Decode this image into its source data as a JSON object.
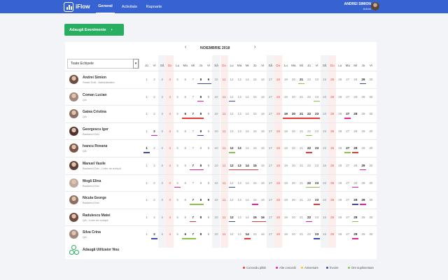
{
  "header": {
    "logo_text": "iFlow",
    "nav": [
      {
        "label": "General",
        "active": true
      },
      {
        "label": "Activitate",
        "active": false
      },
      {
        "label": "Rapoarte",
        "active": false
      }
    ],
    "user_name": "ANDREI SIMION",
    "user_role": "Admin"
  },
  "toolbar": {
    "add_event_label": "Adaugă Evenimente",
    "add_event_arrow": "›"
  },
  "calendar": {
    "month": "NOIEMBRIE 2018",
    "prev": "‹",
    "next": "›",
    "team_filter": "Toate Echipele",
    "weekday_letters": [
      "Jo",
      "Vi",
      "Sâ",
      "Du",
      "Lu",
      "Ma",
      "Mi",
      "Jo",
      "Vi",
      "Sâ",
      "Du",
      "Lu",
      "Ma",
      "Mi",
      "Jo",
      "Vi",
      "Sâ",
      "Du",
      "Lu",
      "Ma",
      "Mi",
      "Jo",
      "Vi",
      "Sâ",
      "Du",
      "Lu",
      "Ma",
      "Mi",
      "Jo",
      "Vi"
    ],
    "days_in_month": 30,
    "first_weekday_index": 0,
    "people": [
      {
        "name": "Andrei Simion",
        "role": "Smart Soft - Administrator",
        "bold": [
          8,
          9,
          21,
          29
        ],
        "events": [
          {
            "day": 8,
            "span": 2,
            "type": "invoire"
          },
          {
            "day": 21,
            "span": 1,
            "type": "ore"
          },
          {
            "day": 29,
            "span": 1,
            "type": "invoire"
          }
        ]
      },
      {
        "name": "Coman Lucian",
        "role": "QA",
        "bold": [
          8
        ],
        "events": [
          {
            "day": 8,
            "span": 1,
            "type": "alte"
          },
          {
            "day": 12,
            "span": 1,
            "type": "invoire"
          },
          {
            "day": 23,
            "span": 1,
            "type": "ore"
          }
        ]
      },
      {
        "name": "Gatea Cristina",
        "role": "QA",
        "bold": [
          6,
          7,
          8,
          19,
          20,
          21,
          22,
          23,
          27,
          28
        ],
        "events": [
          {
            "day": 6,
            "span": 3,
            "type": "concediu"
          },
          {
            "day": 19,
            "span": 5,
            "type": "concediu"
          },
          {
            "day": 27,
            "span": 1,
            "type": "alte"
          }
        ]
      },
      {
        "name": "Georgescu Igor",
        "role": "Backend Dev",
        "bold": [
          2,
          8
        ],
        "events": [
          {
            "day": 2,
            "span": 1,
            "type": "alte"
          },
          {
            "day": 8,
            "span": 1,
            "type": "invoire"
          },
          {
            "day": 22,
            "span": 1,
            "type": "ore"
          }
        ]
      },
      {
        "name": "Ivancu Roxana",
        "role": "QA",
        "bold": [
          1,
          12,
          13,
          22,
          23,
          27,
          28
        ],
        "events": [
          {
            "day": 1,
            "span": 1,
            "type": "invoire"
          },
          {
            "day": 12,
            "span": 1,
            "type": "ore"
          },
          {
            "day": 22,
            "span": 1,
            "type": "concediu"
          },
          {
            "day": 27,
            "span": 1,
            "type": "ore"
          },
          {
            "day": 28,
            "span": 1,
            "type": "concediu"
          }
        ]
      },
      {
        "name": "Manuel Vasile",
        "role": "Backend Dev - Lider de echipă",
        "bold": [
          7,
          8,
          12,
          13,
          14,
          15,
          29
        ],
        "events": [
          {
            "day": 7,
            "span": 2,
            "type": "alte"
          },
          {
            "day": 12,
            "span": 4,
            "type": "concediu"
          },
          {
            "day": 29,
            "span": 1,
            "type": "alte"
          }
        ]
      },
      {
        "name": "Mogă Elina",
        "role": "Backend Dev",
        "bold": [
          22,
          23
        ],
        "events": [
          {
            "day": 5,
            "span": 1,
            "type": "alte"
          },
          {
            "day": 12,
            "span": 1,
            "type": "invoire"
          },
          {
            "day": 22,
            "span": 2,
            "type": "ore"
          },
          {
            "day": 28,
            "span": 1,
            "type": "alte"
          }
        ]
      },
      {
        "name": "Nicula George",
        "role": "Backend Dev",
        "bold": [
          7,
          8,
          9,
          23,
          28,
          29
        ],
        "events": [
          {
            "day": 7,
            "span": 2,
            "type": "ore"
          },
          {
            "day": 15,
            "span": 1,
            "type": "alte"
          },
          {
            "day": 23,
            "span": 1,
            "type": "concediu"
          },
          {
            "day": 28,
            "span": 1,
            "type": "invoire"
          },
          {
            "day": 29,
            "span": 1,
            "type": "alte"
          }
        ]
      },
      {
        "name": "Radulescu Matei",
        "role": "QA - Lider de echipă",
        "bold": [
          7,
          8,
          12,
          15,
          16,
          22,
          28
        ],
        "events": [
          {
            "day": 7,
            "span": 1,
            "type": "concediu"
          },
          {
            "day": 12,
            "span": 1,
            "type": "invoire"
          },
          {
            "day": 15,
            "span": 2,
            "type": "concediu"
          },
          {
            "day": 22,
            "span": 1,
            "type": "alte"
          },
          {
            "day": 28,
            "span": 1,
            "type": "ore"
          }
        ]
      },
      {
        "name": "Silva Crina",
        "role": "QA",
        "bold": [
          2,
          6,
          7,
          8,
          14,
          23,
          28
        ],
        "events": [
          {
            "day": 2,
            "span": 1,
            "type": "invoire"
          },
          {
            "day": 6,
            "span": 2,
            "type": "ore"
          },
          {
            "day": 14,
            "span": 1,
            "type": "concediu"
          },
          {
            "day": 23,
            "span": 1,
            "type": "invoire"
          },
          {
            "day": 28,
            "span": 1,
            "type": "alte"
          }
        ]
      }
    ],
    "add_user_label": "Adaugă Utilizator Nou"
  },
  "event_colors": {
    "concediu": "#e53935",
    "alte": "#e91e9e",
    "aniversare": "#fbc02d",
    "invoire": "#3949ab",
    "ore": "#8bc34a"
  },
  "legend": [
    {
      "label": "Concediu plătit",
      "type": "concediu"
    },
    {
      "label": "Alte concedii",
      "type": "alte"
    },
    {
      "label": "Aniversare",
      "type": "aniversare"
    },
    {
      "label": "Învoire",
      "type": "invoire"
    },
    {
      "label": "Ore suplimentare",
      "type": "ore"
    }
  ]
}
